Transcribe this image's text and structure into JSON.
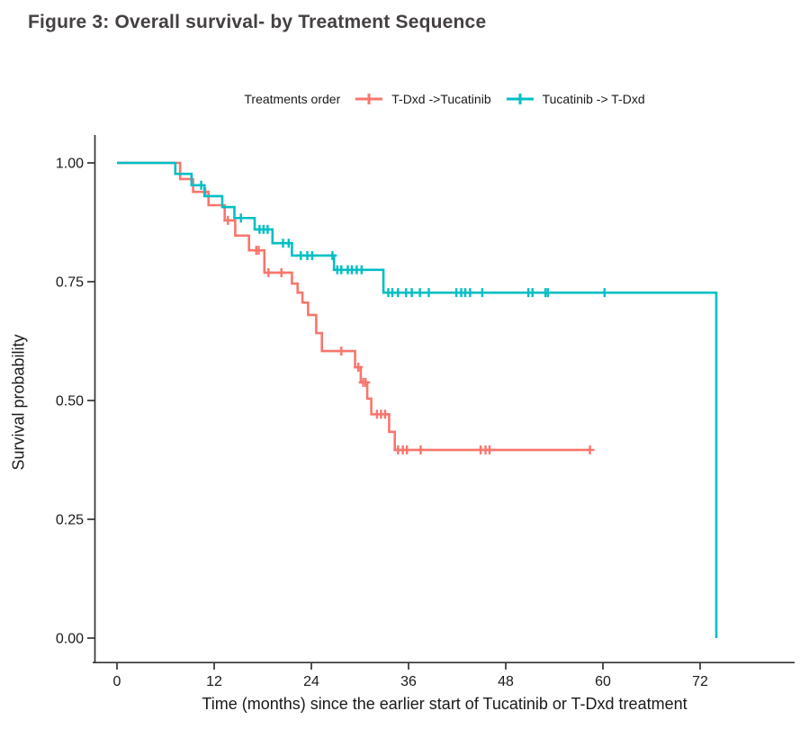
{
  "figure": {
    "title": "Figure 3: Overall survival- by Treatment Sequence"
  },
  "legend": {
    "title": "Treatments order",
    "series": [
      {
        "label": "T-Dxd ->Tucatinib",
        "color": "#F8766D"
      },
      {
        "label": "Tucatinib -> T-Dxd",
        "color": "#00BFC4"
      }
    ]
  },
  "chart_data": {
    "type": "line",
    "subtype": "kaplan-meier-step-curve",
    "title": "Figure 3: Overall survival- by Treatment Sequence",
    "xlabel": "Time (months) since the earlier start of Tucatinib or T-Dxd treatment",
    "ylabel": "Survival probability",
    "legend_title": "Treatments order",
    "legend_position": "top",
    "grid": false,
    "xlim": [
      0,
      79
    ],
    "ylim": [
      0,
      1
    ],
    "x_ticks": [
      0,
      12,
      24,
      36,
      48,
      60,
      72
    ],
    "x_tick_labels": [
      "0",
      "12",
      "24",
      "36",
      "48",
      "60",
      "72"
    ],
    "y_ticks": [
      0,
      0.25,
      0.5,
      0.75,
      1
    ],
    "y_tick_labels": [
      "0.00",
      "0.25",
      "0.50",
      "0.75",
      "1.00"
    ],
    "series": [
      {
        "name": "T-Dxd ->Tucatinib",
        "color": "#F8766D",
        "steps": [
          [
            0,
            1.0
          ],
          [
            7.8,
            0.966
          ],
          [
            9.4,
            0.939
          ],
          [
            11.3,
            0.911
          ],
          [
            13.3,
            0.879
          ],
          [
            14.6,
            0.847
          ],
          [
            16.3,
            0.816
          ],
          [
            18.2,
            0.769
          ],
          [
            21.6,
            0.746
          ],
          [
            22.3,
            0.727
          ],
          [
            22.9,
            0.706
          ],
          [
            23.6,
            0.68
          ],
          [
            24.6,
            0.642
          ],
          [
            25.3,
            0.604
          ],
          [
            29.4,
            0.57
          ],
          [
            30.1,
            0.538
          ],
          [
            30.9,
            0.504
          ],
          [
            31.4,
            0.471
          ],
          [
            33.6,
            0.434
          ],
          [
            34.3,
            0.396
          ],
          [
            58.5,
            0.396
          ]
        ],
        "censor_marks": [
          [
            10.9,
            0.939
          ],
          [
            13.7,
            0.879
          ],
          [
            17.2,
            0.816
          ],
          [
            17.5,
            0.816
          ],
          [
            18.7,
            0.769
          ],
          [
            20.3,
            0.769
          ],
          [
            27.7,
            0.604
          ],
          [
            29.8,
            0.57
          ],
          [
            30.4,
            0.538
          ],
          [
            30.7,
            0.538
          ],
          [
            32.1,
            0.471
          ],
          [
            32.6,
            0.471
          ],
          [
            33.1,
            0.471
          ],
          [
            34.7,
            0.396
          ],
          [
            35.3,
            0.396
          ],
          [
            35.8,
            0.396
          ],
          [
            37.5,
            0.396
          ],
          [
            44.9,
            0.396
          ],
          [
            45.5,
            0.396
          ],
          [
            46.0,
            0.396
          ],
          [
            58.4,
            0.396
          ]
        ]
      },
      {
        "name": "Tucatinib -> T-Dxd",
        "color": "#00BFC4",
        "steps": [
          [
            0,
            1.0
          ],
          [
            7.2,
            0.977
          ],
          [
            9.2,
            0.953
          ],
          [
            10.8,
            0.93
          ],
          [
            13.0,
            0.907
          ],
          [
            14.5,
            0.884
          ],
          [
            17.0,
            0.86
          ],
          [
            19.2,
            0.831
          ],
          [
            21.6,
            0.805
          ],
          [
            26.8,
            0.775
          ],
          [
            32.9,
            0.727
          ],
          [
            74.0,
            0.0
          ]
        ],
        "censor_marks": [
          [
            10.4,
            0.953
          ],
          [
            15.3,
            0.884
          ],
          [
            17.6,
            0.86
          ],
          [
            18.1,
            0.86
          ],
          [
            18.6,
            0.86
          ],
          [
            20.5,
            0.831
          ],
          [
            21.2,
            0.831
          ],
          [
            22.7,
            0.805
          ],
          [
            23.5,
            0.805
          ],
          [
            24.1,
            0.805
          ],
          [
            26.6,
            0.805
          ],
          [
            27.2,
            0.775
          ],
          [
            27.7,
            0.775
          ],
          [
            28.5,
            0.775
          ],
          [
            29.0,
            0.775
          ],
          [
            29.6,
            0.775
          ],
          [
            30.2,
            0.775
          ],
          [
            33.5,
            0.727
          ],
          [
            34.0,
            0.727
          ],
          [
            34.7,
            0.727
          ],
          [
            35.7,
            0.727
          ],
          [
            36.4,
            0.727
          ],
          [
            37.4,
            0.727
          ],
          [
            38.5,
            0.727
          ],
          [
            41.9,
            0.727
          ],
          [
            42.5,
            0.727
          ],
          [
            43.0,
            0.727
          ],
          [
            43.6,
            0.727
          ],
          [
            45.1,
            0.727
          ],
          [
            50.8,
            0.727
          ],
          [
            51.3,
            0.727
          ],
          [
            52.9,
            0.727
          ],
          [
            53.2,
            0.727
          ],
          [
            60.2,
            0.727
          ]
        ]
      }
    ]
  }
}
